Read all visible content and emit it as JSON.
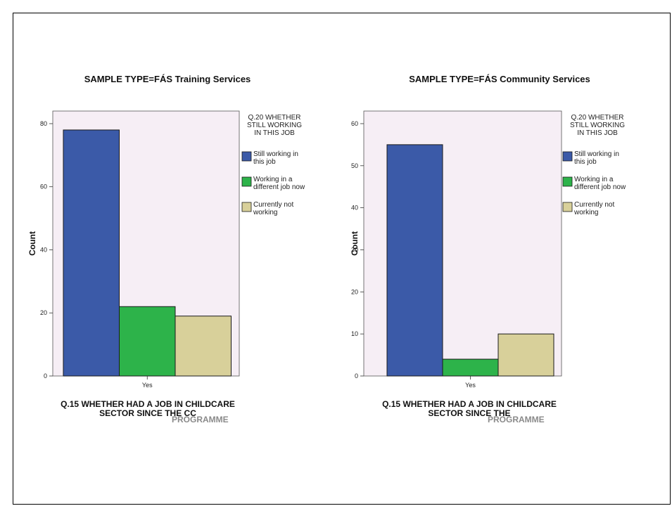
{
  "colors": {
    "still_working": "#3b5aa8",
    "different_job": "#2db34a",
    "not_working": "#d8d09a",
    "plot_bg": "#f6eef5"
  },
  "chart_data": [
    {
      "type": "bar",
      "title": "SAMPLE TYPE=FÁS Training Services",
      "ylabel": "Count",
      "xlabel_lines": [
        "Q.15 WHETHER HAD A JOB IN CHILDCARE",
        "SECTOR SINCE THE CC"
      ],
      "xlabel_overlay": "PROGRAMME",
      "categories": [
        "Yes"
      ],
      "ylim": [
        0,
        84
      ],
      "yticks": [
        0,
        20,
        40,
        60,
        80
      ],
      "legend_title_lines": [
        "Q.20 WHETHER",
        "STILL WORKING",
        "IN THIS JOB"
      ],
      "series": [
        {
          "name_lines": [
            "Still working in",
            "this job"
          ],
          "values": [
            78
          ],
          "color_key": "still_working"
        },
        {
          "name_lines": [
            "Working in a",
            "different job now"
          ],
          "values": [
            22
          ],
          "color_key": "different_job"
        },
        {
          "name_lines": [
            "Currently not",
            "working"
          ],
          "values": [
            19
          ],
          "color_key": "not_working"
        }
      ]
    },
    {
      "type": "bar",
      "title": "SAMPLE TYPE=FÁS Community Services",
      "ylabel": "Count",
      "xlabel_lines": [
        "Q.15 WHETHER HAD A JOB IN CHILDCARE",
        "SECTOR SINCE THE"
      ],
      "xlabel_overlay": "PROGRAMME",
      "categories": [
        "Yes"
      ],
      "ylim": [
        0,
        63
      ],
      "yticks": [
        0,
        10,
        20,
        30,
        40,
        50,
        60
      ],
      "legend_title_lines": [
        "Q.20 WHETHER",
        "STILL WORKING",
        "IN THIS JOB"
      ],
      "series": [
        {
          "name_lines": [
            "Still working in",
            "this job"
          ],
          "values": [
            55
          ],
          "color_key": "still_working"
        },
        {
          "name_lines": [
            "Working in a",
            "different job now"
          ],
          "values": [
            4
          ],
          "color_key": "different_job"
        },
        {
          "name_lines": [
            "Currently not",
            "working"
          ],
          "values": [
            10
          ],
          "color_key": "not_working"
        }
      ]
    }
  ]
}
